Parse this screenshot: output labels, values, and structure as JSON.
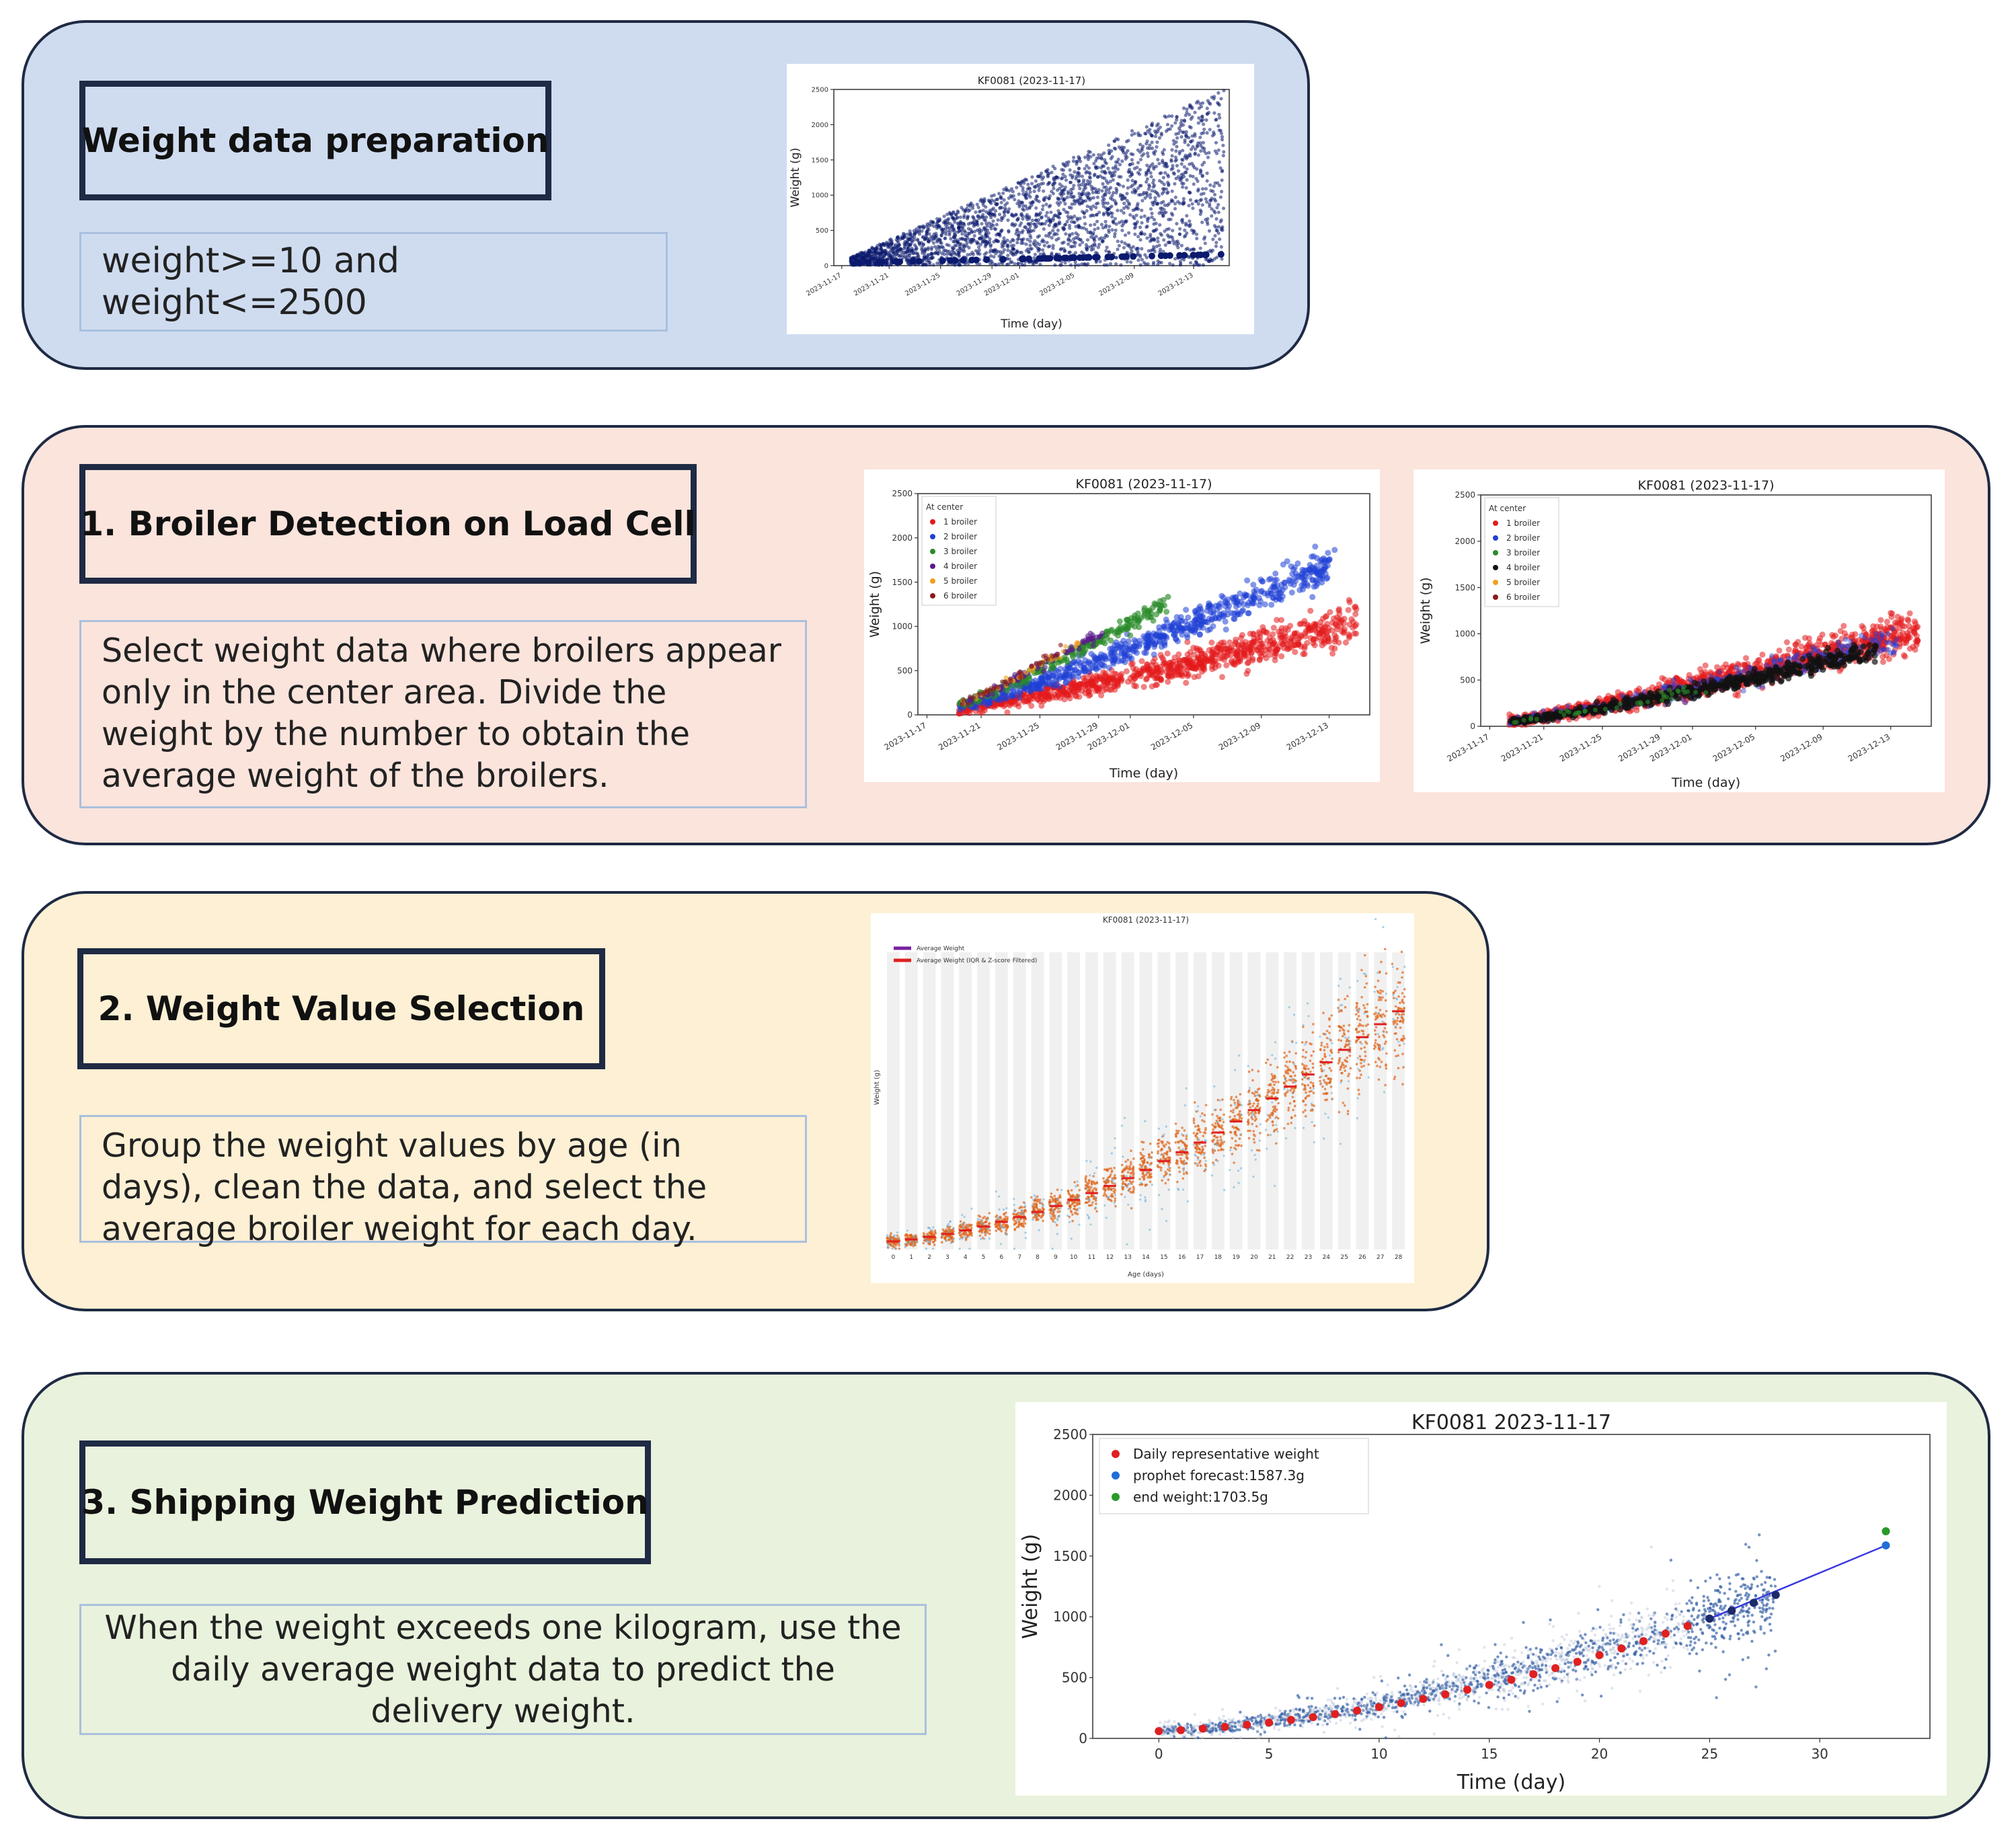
{
  "panels": [
    {
      "title": "Weight data preparation",
      "desc": "weight>=10 and weight<=2500"
    },
    {
      "title": "1. Broiler Detection on Load Cell",
      "desc": "Select weight data where broilers appear only in the center area. Divide the weight by the number to obtain the average weight of the broilers."
    },
    {
      "title": "2. Weight Value Selection",
      "desc": "Group the weight values by age (in days), clean the data, and select the average broiler weight for each day."
    },
    {
      "title": "3. Shipping Weight Prediction",
      "desc": "When the weight exceeds one kilogram, use the daily average weight data to predict the delivery weight."
    }
  ],
  "chart_data": [
    {
      "type": "scatter",
      "title": "KF0081 (2023-11-17)",
      "xlabel": "Time (day)",
      "ylabel": "Weight (g)",
      "ylim": [
        0,
        2500
      ],
      "yticks": [
        0,
        500,
        1000,
        1500,
        2000,
        2500
      ],
      "xticklabels": [
        "2023-11-17",
        "2023-11-21",
        "2023-11-25",
        "2023-11-29",
        "2023-12-01",
        "2023-12-05",
        "2023-12-09",
        "2023-12-13"
      ],
      "color": "#0b1a6e"
    },
    {
      "type": "scatter",
      "title": "KF0081 (2023-11-17)",
      "xlabel": "Time (day)",
      "ylabel": "Weight (g)",
      "ylim": [
        0,
        2500
      ],
      "yticks": [
        0,
        500,
        1000,
        1500,
        2000,
        2500
      ],
      "xticklabels": [
        "2023-11-17",
        "2023-11-21",
        "2023-11-25",
        "2023-11-29",
        "2023-12-01",
        "2023-12-05",
        "2023-12-09",
        "2023-12-13"
      ],
      "legend_title": "At center",
      "legend": [
        "1 broiler",
        "2 broiler",
        "3 broiler",
        "4 broiler",
        "5 broiler",
        "6 broiler"
      ],
      "colors": [
        "#e31a1c",
        "#1f3fd6",
        "#2a8a2a",
        "#5a1a8a",
        "#f0a020",
        "#8b1a1a"
      ]
    },
    {
      "type": "scatter",
      "title": "KF0081 (2023-11-17)",
      "xlabel": "Time (day)",
      "ylabel": "Weight (g)",
      "ylim": [
        0,
        2500
      ],
      "yticks": [
        0,
        500,
        1000,
        1500,
        2000,
        2500
      ],
      "xticklabels": [
        "2023-11-17",
        "2023-11-21",
        "2023-11-25",
        "2023-11-29",
        "2023-12-01",
        "2023-12-05",
        "2023-12-09",
        "2023-12-13"
      ],
      "legend_title": "At center",
      "legend": [
        "1 broiler",
        "2 broiler",
        "3 broiler",
        "4 broiler",
        "5 broiler",
        "6 broiler"
      ],
      "colors": [
        "#e31a1c",
        "#1f3fd6",
        "#2a8a2a",
        "#111111",
        "#f0a020",
        "#8b1a1a"
      ]
    },
    {
      "type": "scatter",
      "title": "KF0081 (2023-11-17)",
      "xlabel": "Age (days)",
      "ylabel": "Weight (g)",
      "x": [
        0,
        1,
        2,
        3,
        4,
        5,
        6,
        7,
        8,
        9,
        10,
        11,
        12,
        13,
        14,
        15,
        16,
        17,
        18,
        19,
        20,
        21,
        22,
        23,
        24,
        25,
        26,
        27,
        28
      ],
      "legend": [
        "Average Weight",
        "Average Weight (IQR & Z-score Filtered)"
      ],
      "colors": [
        "#7a1fa0",
        "#e02020"
      ],
      "avg": [
        50,
        62,
        78,
        96,
        118,
        142,
        170,
        200,
        232,
        268,
        306,
        348,
        392,
        440,
        490,
        545,
        600,
        660,
        722,
        790,
        860,
        932,
        1005,
        1080,
        1155,
        1232,
        1310,
        1390,
        1470
      ]
    },
    {
      "type": "scatter",
      "title": "KF0081 2023-11-17",
      "xlabel": "Time (day)",
      "ylabel": "Weight (g)",
      "xlim": [
        -3,
        35
      ],
      "ylim": [
        0,
        2500
      ],
      "xticks": [
        0,
        5,
        10,
        15,
        20,
        25,
        30
      ],
      "yticks": [
        0,
        500,
        1000,
        1500,
        2000,
        2500
      ],
      "legend": [
        "Daily representative weight",
        "prophet forecast:1587.3g",
        "end weight:1703.5g"
      ],
      "colors": [
        "#e02020",
        "#1f6fd6",
        "#2a9a2a"
      ],
      "daily": [
        [
          0,
          60
        ],
        [
          1,
          68
        ],
        [
          2,
          80
        ],
        [
          3,
          95
        ],
        [
          4,
          112
        ],
        [
          5,
          130
        ],
        [
          6,
          152
        ],
        [
          7,
          175
        ],
        [
          8,
          200
        ],
        [
          9,
          228
        ],
        [
          10,
          258
        ],
        [
          11,
          290
        ],
        [
          12,
          325
        ],
        [
          13,
          362
        ],
        [
          14,
          400
        ],
        [
          15,
          440
        ],
        [
          16,
          482
        ],
        [
          17,
          528
        ],
        [
          18,
          578
        ],
        [
          19,
          630
        ],
        [
          20,
          685
        ],
        [
          21,
          740
        ],
        [
          22,
          800
        ],
        [
          23,
          862
        ],
        [
          24,
          925
        ],
        [
          25,
          985
        ],
        [
          26,
          1050
        ],
        [
          27,
          1115
        ],
        [
          28,
          1180
        ]
      ],
      "forecast": [
        33,
        1587.3
      ],
      "end_weight": [
        33,
        1703.5
      ]
    }
  ]
}
